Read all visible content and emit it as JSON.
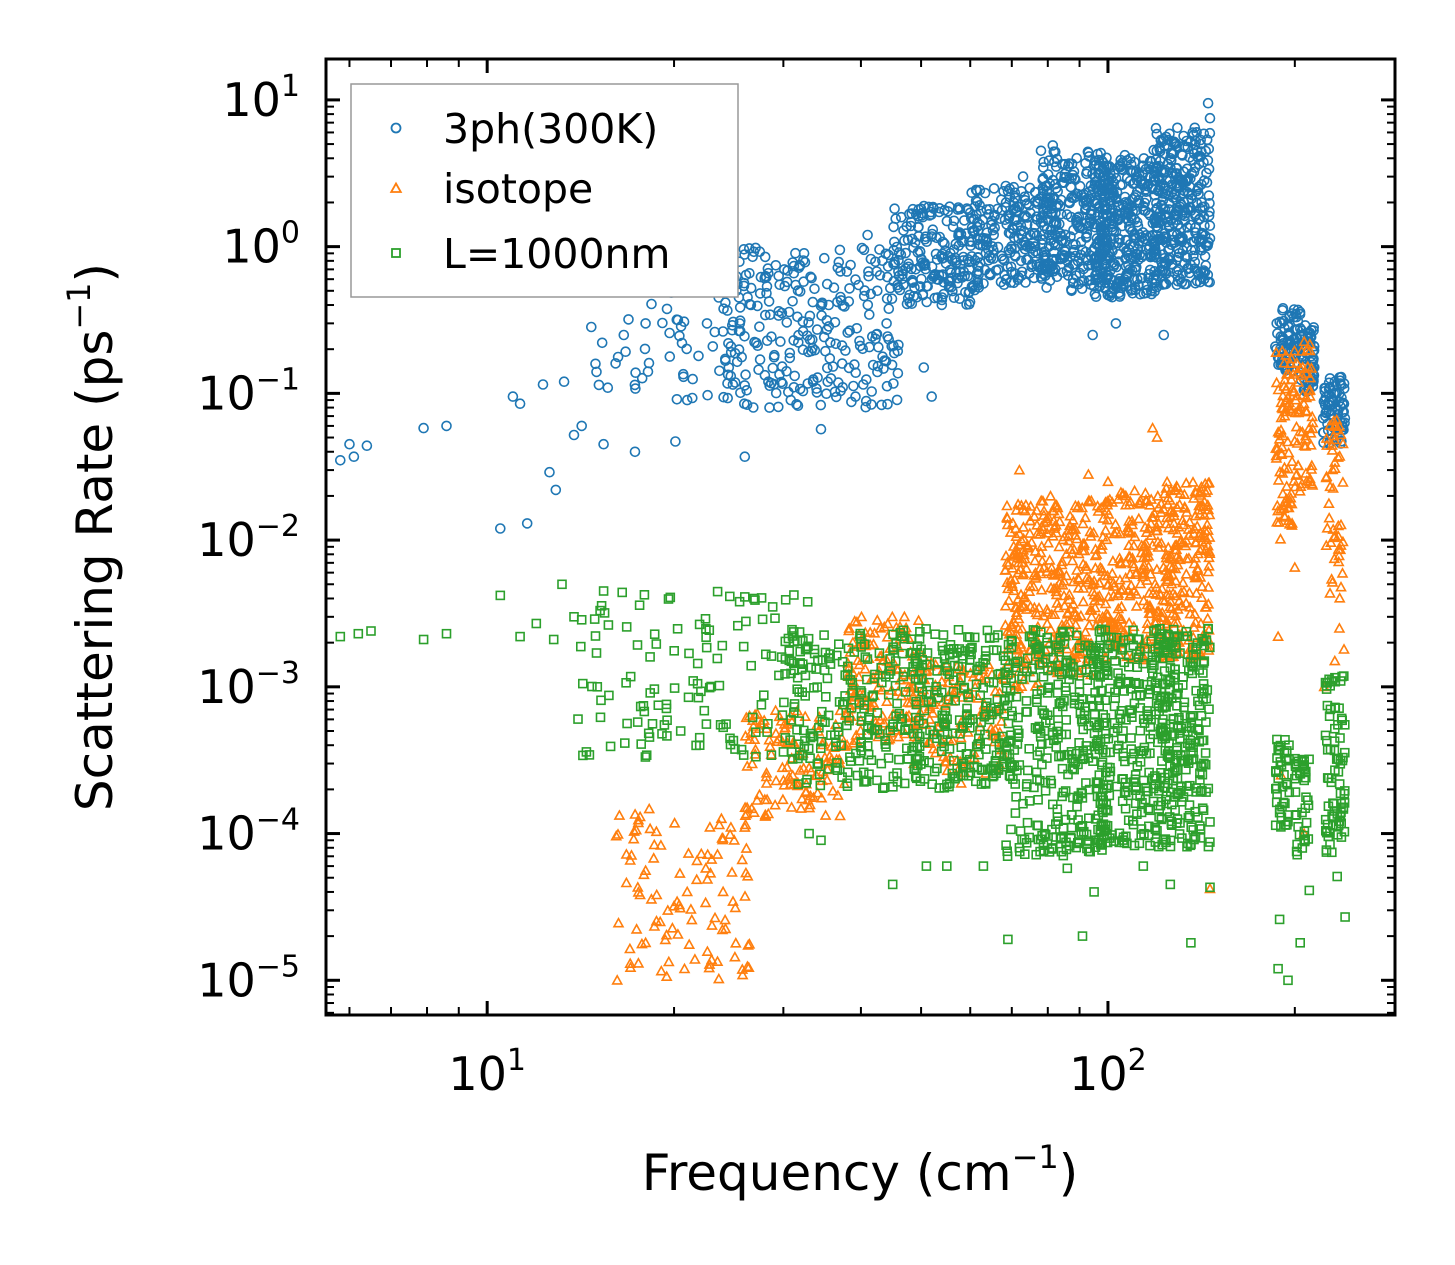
{
  "chart_data": {
    "type": "scatter",
    "xscale": "log",
    "yscale": "log",
    "xlim": [
      5.5,
      290
    ],
    "ylim": [
      5.8e-06,
      19
    ],
    "xlabel": {
      "main": "Frequency (cm",
      "sup": "−1",
      "end": ")"
    },
    "ylabel": {
      "main": "Scattering Rate (ps",
      "sup": "−1",
      "end": ")"
    },
    "xticks": [
      {
        "base": "10",
        "exp": "1",
        "value": 10
      },
      {
        "base": "10",
        "exp": "2",
        "value": 100
      }
    ],
    "yticks": [
      {
        "base": "10",
        "exp": "1",
        "value": 10
      },
      {
        "base": "10",
        "exp": "0",
        "value": 1
      },
      {
        "base": "10",
        "exp": "−1",
        "value": 0.1
      },
      {
        "base": "10",
        "exp": "−2",
        "value": 0.01
      },
      {
        "base": "10",
        "exp": "−3",
        "value": 0.001
      },
      {
        "base": "10",
        "exp": "−4",
        "value": 0.0001
      },
      {
        "base": "10",
        "exp": "−5",
        "value": 1e-05
      }
    ],
    "legend": {
      "position": "top-left",
      "entries": [
        {
          "label": "3ph(300K)",
          "marker": "circle",
          "color": "#1f77b4"
        },
        {
          "label": "isotope",
          "marker": "triangle",
          "color": "#ff7f0e"
        },
        {
          "label": "L=1000nm",
          "marker": "square",
          "color": "#2ca02c"
        }
      ]
    },
    "series": [
      {
        "name": "3ph(300K)",
        "marker": "circle",
        "color": "#1f77b4",
        "points": [
          [
            5.8,
            0.035
          ],
          [
            6.0,
            0.045
          ],
          [
            6.1,
            0.037
          ],
          [
            6.4,
            0.044
          ],
          [
            7.9,
            0.058
          ],
          [
            8.6,
            0.06
          ],
          [
            10.5,
            0.012
          ],
          [
            11.0,
            0.095
          ],
          [
            11.3,
            0.085
          ],
          [
            11.6,
            0.013
          ],
          [
            12.3,
            0.115
          ],
          [
            12.6,
            0.029
          ],
          [
            12.9,
            0.022
          ],
          [
            13.3,
            0.12
          ],
          [
            13.8,
            0.052
          ],
          [
            14.2,
            0.06
          ],
          [
            15.0,
            0.14
          ],
          [
            15.4,
            0.045
          ],
          [
            16.1,
            0.16
          ],
          [
            16.6,
            0.25
          ],
          [
            17.3,
            0.04
          ],
          [
            18.0,
            0.3
          ],
          [
            18.8,
            0.55
          ],
          [
            19.6,
            0.5
          ],
          [
            20.1,
            0.047
          ],
          [
            20.6,
            0.22
          ],
          [
            21.0,
            0.09
          ],
          [
            21.9,
            0.18
          ],
          [
            22.6,
            0.3
          ],
          [
            23.6,
            0.45
          ],
          [
            24.5,
            0.15
          ],
          [
            25.2,
            0.5
          ],
          [
            26.0,
            0.037
          ],
          [
            26.6,
            0.4
          ],
          [
            27.6,
            0.62
          ],
          [
            28.5,
            0.08
          ],
          [
            29.6,
            0.55
          ],
          [
            30.1,
            0.7
          ],
          [
            31.2,
            0.11
          ],
          [
            32.4,
            0.9
          ],
          [
            33.5,
            0.12
          ],
          [
            34.5,
            0.057
          ],
          [
            35.5,
            0.4
          ],
          [
            37.0,
            0.95
          ],
          [
            38.5,
            0.75
          ],
          [
            39.2,
            0.095
          ],
          [
            41.0,
            1.2
          ],
          [
            42.5,
            0.5
          ],
          [
            44.0,
            0.3
          ],
          [
            45.5,
            1.55
          ],
          [
            47.0,
            1.1
          ],
          [
            48.5,
            1.8
          ],
          [
            50.5,
            0.15
          ],
          [
            52.0,
            0.095
          ],
          [
            53.0,
            0.6
          ],
          [
            56.5,
            1.5
          ],
          [
            58.5,
            0.85
          ],
          [
            60.0,
            1.7
          ],
          [
            63.5,
            1.1
          ],
          [
            65.0,
            1.5
          ],
          [
            68.0,
            0.55
          ],
          [
            70.5,
            2.0
          ],
          [
            73.0,
            3.0
          ],
          [
            75.0,
            1.2
          ],
          [
            78.0,
            4.5
          ],
          [
            81.5,
            4.9
          ],
          [
            84.0,
            3.0
          ],
          [
            86.0,
            0.8
          ],
          [
            89.0,
            2.2
          ],
          [
            92.0,
            3.7
          ],
          [
            94.5,
            0.25
          ],
          [
            97.0,
            1.0
          ],
          [
            100.5,
            2.8
          ],
          [
            103.0,
            0.3
          ],
          [
            106.5,
            4.2
          ],
          [
            110.0,
            1.0
          ],
          [
            113.0,
            2.8
          ],
          [
            116.5,
            0.65
          ],
          [
            120.0,
            3.5
          ],
          [
            123.0,
            0.25
          ],
          [
            126.0,
            4.0
          ],
          [
            130.0,
            2.5
          ],
          [
            133.0,
            1.5
          ],
          [
            137.0,
            6.0
          ],
          [
            141.0,
            5.0
          ],
          [
            145.0,
            9.5
          ],
          [
            146.0,
            7.5
          ],
          [
            187.0,
            0.3
          ],
          [
            190.0,
            0.23
          ],
          [
            193.0,
            0.18
          ],
          [
            198.0,
            0.35
          ],
          [
            205.0,
            0.25
          ],
          [
            209.0,
            0.2
          ],
          [
            213.0,
            0.15
          ],
          [
            224.0,
            0.07
          ],
          [
            229.0,
            0.09
          ],
          [
            232.0,
            0.12
          ],
          [
            236.0,
            0.1
          ],
          [
            240.0,
            0.085
          ]
        ],
        "clusters": [
          [
            14,
            26,
            0.09,
            0.6,
            50
          ],
          [
            24,
            46,
            0.08,
            1.0,
            260
          ],
          [
            45,
            62,
            0.4,
            1.9,
            200
          ],
          [
            60,
            80,
            0.55,
            2.6,
            190
          ],
          [
            78,
            100,
            0.5,
            4.5,
            280
          ],
          [
            95,
            120,
            0.45,
            4.0,
            340
          ],
          [
            118,
            146,
            0.55,
            6.5,
            330
          ],
          [
            186,
            204,
            0.14,
            0.38,
            70
          ],
          [
            204,
            215,
            0.1,
            0.3,
            60
          ],
          [
            222,
            241,
            0.045,
            0.13,
            70
          ]
        ]
      },
      {
        "name": "isotope",
        "marker": "triangle",
        "color": "#ff7f0e",
        "points": [
          [
            16.2,
            1e-05
          ],
          [
            17.0,
            1.3e-05
          ],
          [
            18.0,
            1.8e-05
          ],
          [
            19.0,
            2.5e-05
          ],
          [
            20.0,
            3.2e-05
          ],
          [
            21.0,
            4e-05
          ],
          [
            22.5,
            5.8e-05
          ],
          [
            23.5,
            7.2e-05
          ],
          [
            25.0,
            9e-05
          ],
          [
            26.0,
            0.00011
          ],
          [
            28.0,
            0.00017
          ],
          [
            30.0,
            0.00023
          ],
          [
            33.0,
            0.00028
          ],
          [
            35.0,
            0.00033
          ],
          [
            38.0,
            0.0004
          ],
          [
            42.0,
            0.00075
          ],
          [
            47.0,
            0.003
          ],
          [
            50.5,
            0.0016
          ],
          [
            58.0,
            0.00022
          ],
          [
            72.0,
            0.03
          ],
          [
            82.0,
            0.012
          ],
          [
            93.0,
            0.028
          ],
          [
            100.0,
            0.025
          ],
          [
            118.0,
            0.058
          ],
          [
            120.0,
            0.05
          ],
          [
            128.0,
            0.022
          ],
          [
            146.0,
            4.2e-05
          ],
          [
            190.0,
            0.00025
          ],
          [
            188.0,
            0.0022
          ],
          [
            198.0,
            0.013
          ],
          [
            200.0,
            0.0065
          ],
          [
            207.0,
            0.0001
          ],
          [
            223.0,
            0.001
          ],
          [
            232.0,
            0.0015
          ],
          [
            236.0,
            0.0025
          ],
          [
            240.0,
            0.0018
          ]
        ],
        "clusters": [
          [
            16,
            27,
            1e-05,
            0.00015,
            100
          ],
          [
            26,
            38,
            0.00013,
            0.0007,
            120
          ],
          [
            38,
            50,
            0.0004,
            0.003,
            130
          ],
          [
            48,
            68,
            0.00025,
            0.0015,
            130
          ],
          [
            68,
            78,
            0.0009,
            0.018,
            150
          ],
          [
            78,
            100,
            0.0012,
            0.02,
            230
          ],
          [
            100,
            125,
            0.0015,
            0.022,
            200
          ],
          [
            124,
            146,
            0.0015,
            0.025,
            190
          ],
          [
            186,
            200,
            0.01,
            0.2,
            80
          ],
          [
            200,
            214,
            0.02,
            0.25,
            60
          ],
          [
            224,
            240,
            0.004,
            0.07,
            50
          ]
        ]
      },
      {
        "name": "L=1000nm",
        "marker": "square",
        "color": "#2ca02c",
        "points": [
          [
            5.8,
            0.0022
          ],
          [
            6.2,
            0.0023
          ],
          [
            6.5,
            0.0024
          ],
          [
            7.9,
            0.0021
          ],
          [
            8.6,
            0.0023
          ],
          [
            10.5,
            0.0042
          ],
          [
            11.3,
            0.0022
          ],
          [
            12.0,
            0.0027
          ],
          [
            12.8,
            0.0021
          ],
          [
            13.2,
            0.005
          ],
          [
            13.8,
            0.003
          ],
          [
            15.0,
            0.0017
          ],
          [
            15.4,
            0.0045
          ],
          [
            16.5,
            0.0044
          ],
          [
            17.6,
            0.0036
          ],
          [
            18.3,
            0.0016
          ],
          [
            19.3,
            0.00055
          ],
          [
            20.5,
            0.0005
          ],
          [
            22.0,
            0.00045
          ],
          [
            24.0,
            0.00053
          ],
          [
            26.0,
            0.0041
          ],
          [
            27.0,
            0.0039
          ],
          [
            30.0,
            0.00036
          ],
          [
            33.0,
            0.0001
          ],
          [
            34.5,
            9e-05
          ],
          [
            38.0,
            0.00022
          ],
          [
            45.0,
            4.5e-05
          ],
          [
            51.0,
            6e-05
          ],
          [
            55.0,
            6e-05
          ],
          [
            63.0,
            6e-05
          ],
          [
            69.0,
            1.9e-05
          ],
          [
            72.0,
            8e-05
          ],
          [
            86.0,
            5.8e-05
          ],
          [
            91.0,
            2e-05
          ],
          [
            95.0,
            4e-05
          ],
          [
            114.0,
            6e-05
          ],
          [
            126.0,
            4.5e-05
          ],
          [
            136.0,
            1.8e-05
          ],
          [
            146.0,
            4.3e-05
          ],
          [
            146.0,
            0.00012
          ],
          [
            188.0,
            1.2e-05
          ],
          [
            189.0,
            2.6e-05
          ],
          [
            195.0,
            1e-05
          ],
          [
            204.0,
            1.8e-05
          ],
          [
            211.0,
            4.1e-05
          ],
          [
            234.0,
            5.1e-05
          ],
          [
            241.0,
            2.7e-05
          ]
        ],
        "clusters": [
          [
            14,
            34,
            0.0003,
            0.0045,
            130
          ],
          [
            30,
            50,
            0.0002,
            0.0025,
            220
          ],
          [
            48,
            70,
            0.0002,
            0.0025,
            220
          ],
          [
            68,
            100,
            7e-05,
            0.0025,
            320
          ],
          [
            95,
            130,
            8e-05,
            0.0025,
            300
          ],
          [
            120,
            146,
            8e-05,
            0.0025,
            200
          ],
          [
            186,
            196,
            9e-05,
            0.00045,
            40
          ],
          [
            200,
            211,
            7e-05,
            0.00035,
            40
          ],
          [
            224,
            241,
            7e-05,
            0.0012,
            80
          ]
        ]
      }
    ]
  }
}
